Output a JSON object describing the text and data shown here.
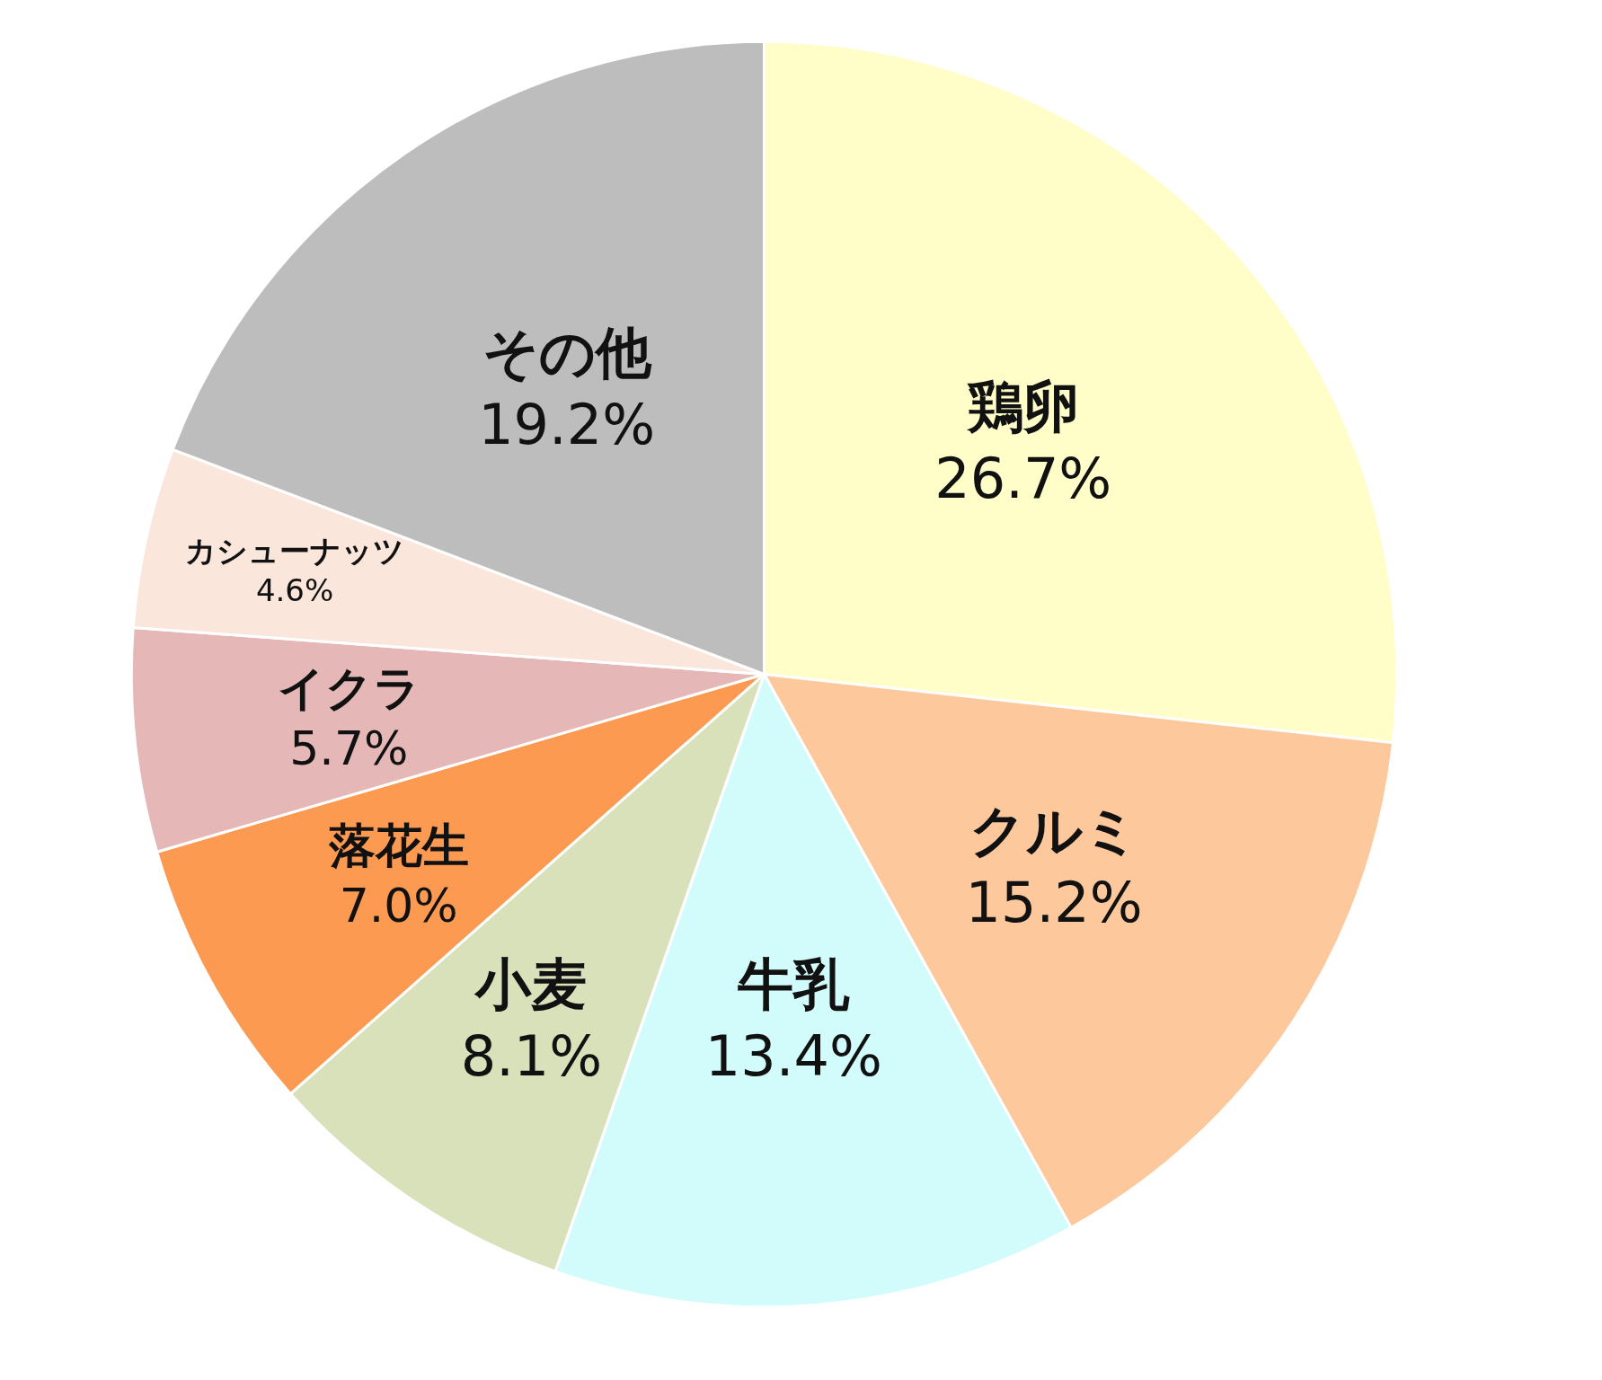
{
  "chart_data": {
    "type": "pie",
    "categories": [
      "鶏卵",
      "クルミ",
      "牛乳",
      "小麦",
      "落花生",
      "イクラ",
      "カシューナッツ",
      "その他"
    ],
    "values": [
      26.7,
      15.2,
      13.4,
      8.1,
      7.0,
      5.7,
      4.6,
      19.2
    ],
    "colors": [
      "#fffdc8",
      "#fcc89c",
      "#d2fcfc",
      "#d9e1bb",
      "#fb9a50",
      "#e5b7b7",
      "#fbe6dc",
      "#bdbdbd"
    ],
    "value_labels": [
      "26.7%",
      "15.2%",
      "13.4%",
      "8.1%",
      "7.0%",
      "5.7%",
      "4.6%",
      "19.2%"
    ]
  }
}
